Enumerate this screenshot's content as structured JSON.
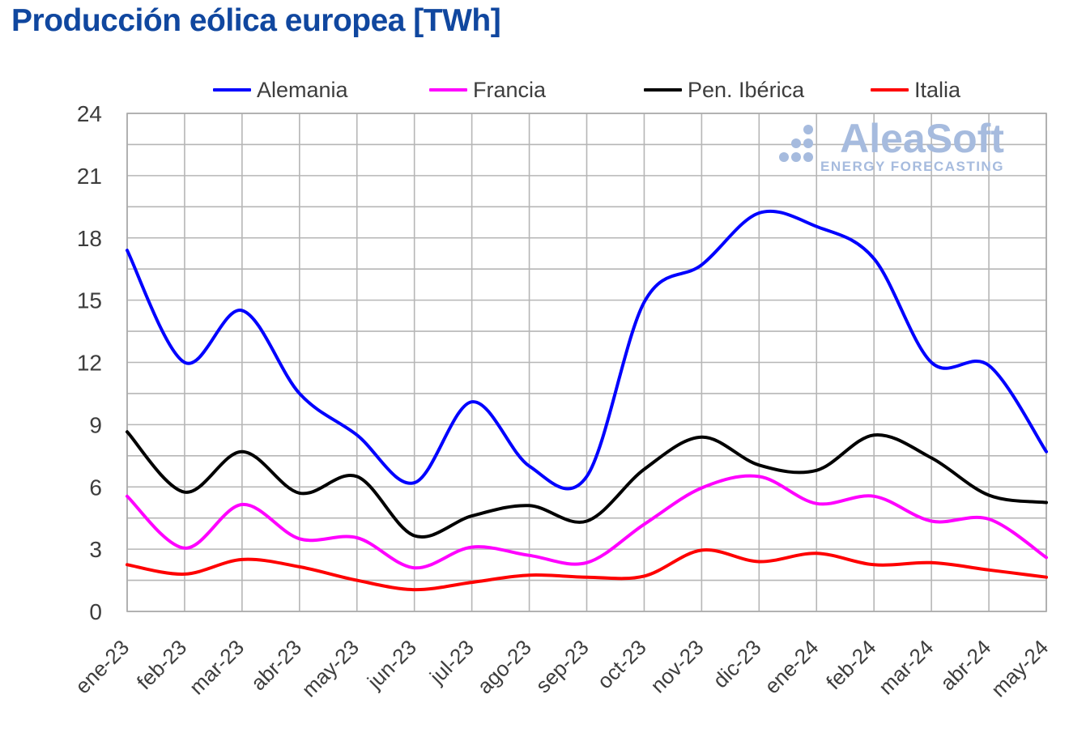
{
  "title": "Producción eólica europea [TWh]",
  "watermark": {
    "brand": "AleaSoft",
    "tagline": "ENERGY FORECASTING"
  },
  "colors": {
    "title": "#10479f",
    "axis_text": "#3d3d3d",
    "grid": "#b6b6b6",
    "plot_border": "#a9a9a9",
    "watermark": "#a6bbde",
    "background": "#ffffff"
  },
  "chart_data": {
    "type": "line",
    "title": "Producción eólica europea [TWh]",
    "xlabel": "",
    "ylabel": "TWh",
    "x": [
      "ene-23",
      "feb-23",
      "mar-23",
      "abr-23",
      "may-23",
      "jun-23",
      "jul-23",
      "ago-23",
      "sep-23",
      "oct-23",
      "nov-23",
      "dic-23",
      "ene-24",
      "feb-24",
      "mar-24",
      "abr-24",
      "may-24"
    ],
    "series": [
      {
        "name": "Alemania",
        "color": "#0000fe",
        "values": [
          17.4,
          12.0,
          14.5,
          10.5,
          8.5,
          6.2,
          10.1,
          7.0,
          6.5,
          14.9,
          16.7,
          19.2,
          18.55,
          17.0,
          12.0,
          11.85,
          7.7
        ]
      },
      {
        "name": "Francia",
        "color": "#ff00ff",
        "values": [
          5.55,
          3.05,
          5.15,
          3.5,
          3.55,
          2.1,
          3.1,
          2.7,
          2.35,
          4.2,
          5.95,
          6.5,
          5.2,
          5.55,
          4.35,
          4.45,
          2.6
        ]
      },
      {
        "name": "Pen. Ibérica",
        "color": "#000000",
        "values": [
          8.65,
          5.75,
          7.7,
          5.7,
          6.5,
          3.65,
          4.6,
          5.1,
          4.35,
          6.85,
          8.4,
          7.05,
          6.8,
          8.5,
          7.4,
          5.6,
          5.25
        ]
      },
      {
        "name": "Italia",
        "color": "#fe0000",
        "values": [
          2.25,
          1.8,
          2.5,
          2.15,
          1.5,
          1.05,
          1.4,
          1.75,
          1.65,
          1.7,
          2.95,
          2.4,
          2.8,
          2.25,
          2.35,
          2.0,
          1.65
        ]
      }
    ],
    "ylim": [
      0,
      24
    ],
    "yticks": [
      0,
      3,
      6,
      9,
      12,
      15,
      18,
      21,
      24
    ],
    "grid_step_y": 1.5,
    "grid": true,
    "smooth": true,
    "legend_position": "top",
    "x_tick_rotation": -45
  }
}
